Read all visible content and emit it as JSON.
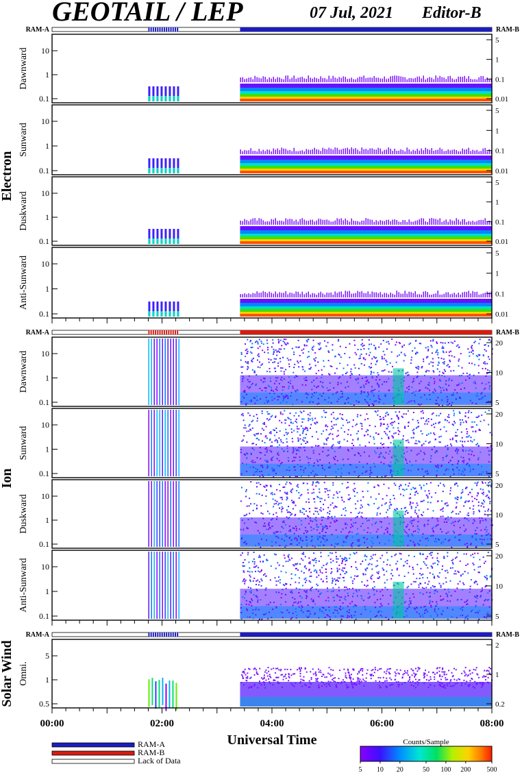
{
  "header": {
    "title": "GEOTAIL / LEP",
    "date": "07 Jul, 2021",
    "editor": "Editor-B"
  },
  "groups": [
    {
      "label": "Electron",
      "ram_left": "RAM-A",
      "ram_right": "RAM-B",
      "ram_bar_color": "#1c1cc0"
    },
    {
      "label": "Ion",
      "ram_left": "RAM-A",
      "ram_right": "RAM-B",
      "ram_bar_color": "#d81c10"
    },
    {
      "label": "Solar Wind",
      "ram_left": "RAM-A",
      "ram_right": "RAM-B",
      "ram_bar_color": "#1c1cc0"
    }
  ],
  "legend": {
    "ram_a": "RAM-A",
    "ram_b": "RAM-B",
    "lack": "Lack of Data",
    "ram_a_color": "#1c1cc0",
    "ram_b_color": "#d81c10"
  },
  "colorbar": {
    "title": "Counts/Sample",
    "ticks": [
      "5",
      "10",
      "20",
      "50",
      "100",
      "200",
      "500"
    ]
  },
  "chart_data": {
    "type": "heatmap",
    "xlabel": "Universal Time",
    "x_ticks": [
      "00:00",
      "02:00",
      "04:00",
      "06:00",
      "08:00"
    ],
    "x_range_hours": [
      0,
      8
    ],
    "data_segments_hours": [
      [
        1.75,
        2.3
      ],
      [
        3.42,
        8.0
      ]
    ],
    "panels": [
      {
        "group": "Electron",
        "ylabel": "Dawnward",
        "yticks_left": [
          "10",
          "1",
          "0.1"
        ],
        "yticks_right": [
          "5",
          "1",
          "0.1",
          "0.01"
        ]
      },
      {
        "group": "Electron",
        "ylabel": "Sunward",
        "yticks_left": [
          "10",
          "1",
          "0.1"
        ],
        "yticks_right": [
          "5",
          "1",
          "0.1",
          "0.01"
        ]
      },
      {
        "group": "Electron",
        "ylabel": "Duskward",
        "yticks_left": [
          "10",
          "1",
          "0.1"
        ],
        "yticks_right": [
          "5",
          "1",
          "0.1",
          "0.01"
        ]
      },
      {
        "group": "Electron",
        "ylabel": "Anti-Sunward",
        "yticks_left": [
          "10",
          "1",
          "0.1"
        ],
        "yticks_right": [
          "5",
          "1",
          "0.1",
          "0.01"
        ]
      },
      {
        "group": "Ion",
        "ylabel": "Dawnward",
        "yticks_left": [
          "10",
          "1",
          "0.1"
        ],
        "yticks_right": [
          "20",
          "10",
          "5"
        ]
      },
      {
        "group": "Ion",
        "ylabel": "Sunward",
        "yticks_left": [
          "10",
          "1",
          "0.1"
        ],
        "yticks_right": [
          "20",
          "10",
          "5"
        ]
      },
      {
        "group": "Ion",
        "ylabel": "Duskward",
        "yticks_left": [
          "10",
          "1",
          "0.1"
        ],
        "yticks_right": [
          "20",
          "10",
          "5"
        ]
      },
      {
        "group": "Ion",
        "ylabel": "Anti-Sunward",
        "yticks_left": [
          "10",
          "1",
          "0.1"
        ],
        "yticks_right": [
          "20",
          "10",
          "5"
        ]
      },
      {
        "group": "Solar Wind",
        "ylabel": "Omni.",
        "yticks_left": [
          "5",
          "1",
          "0.5"
        ],
        "yticks_right": [
          "2",
          "1",
          "0.2"
        ]
      }
    ]
  }
}
